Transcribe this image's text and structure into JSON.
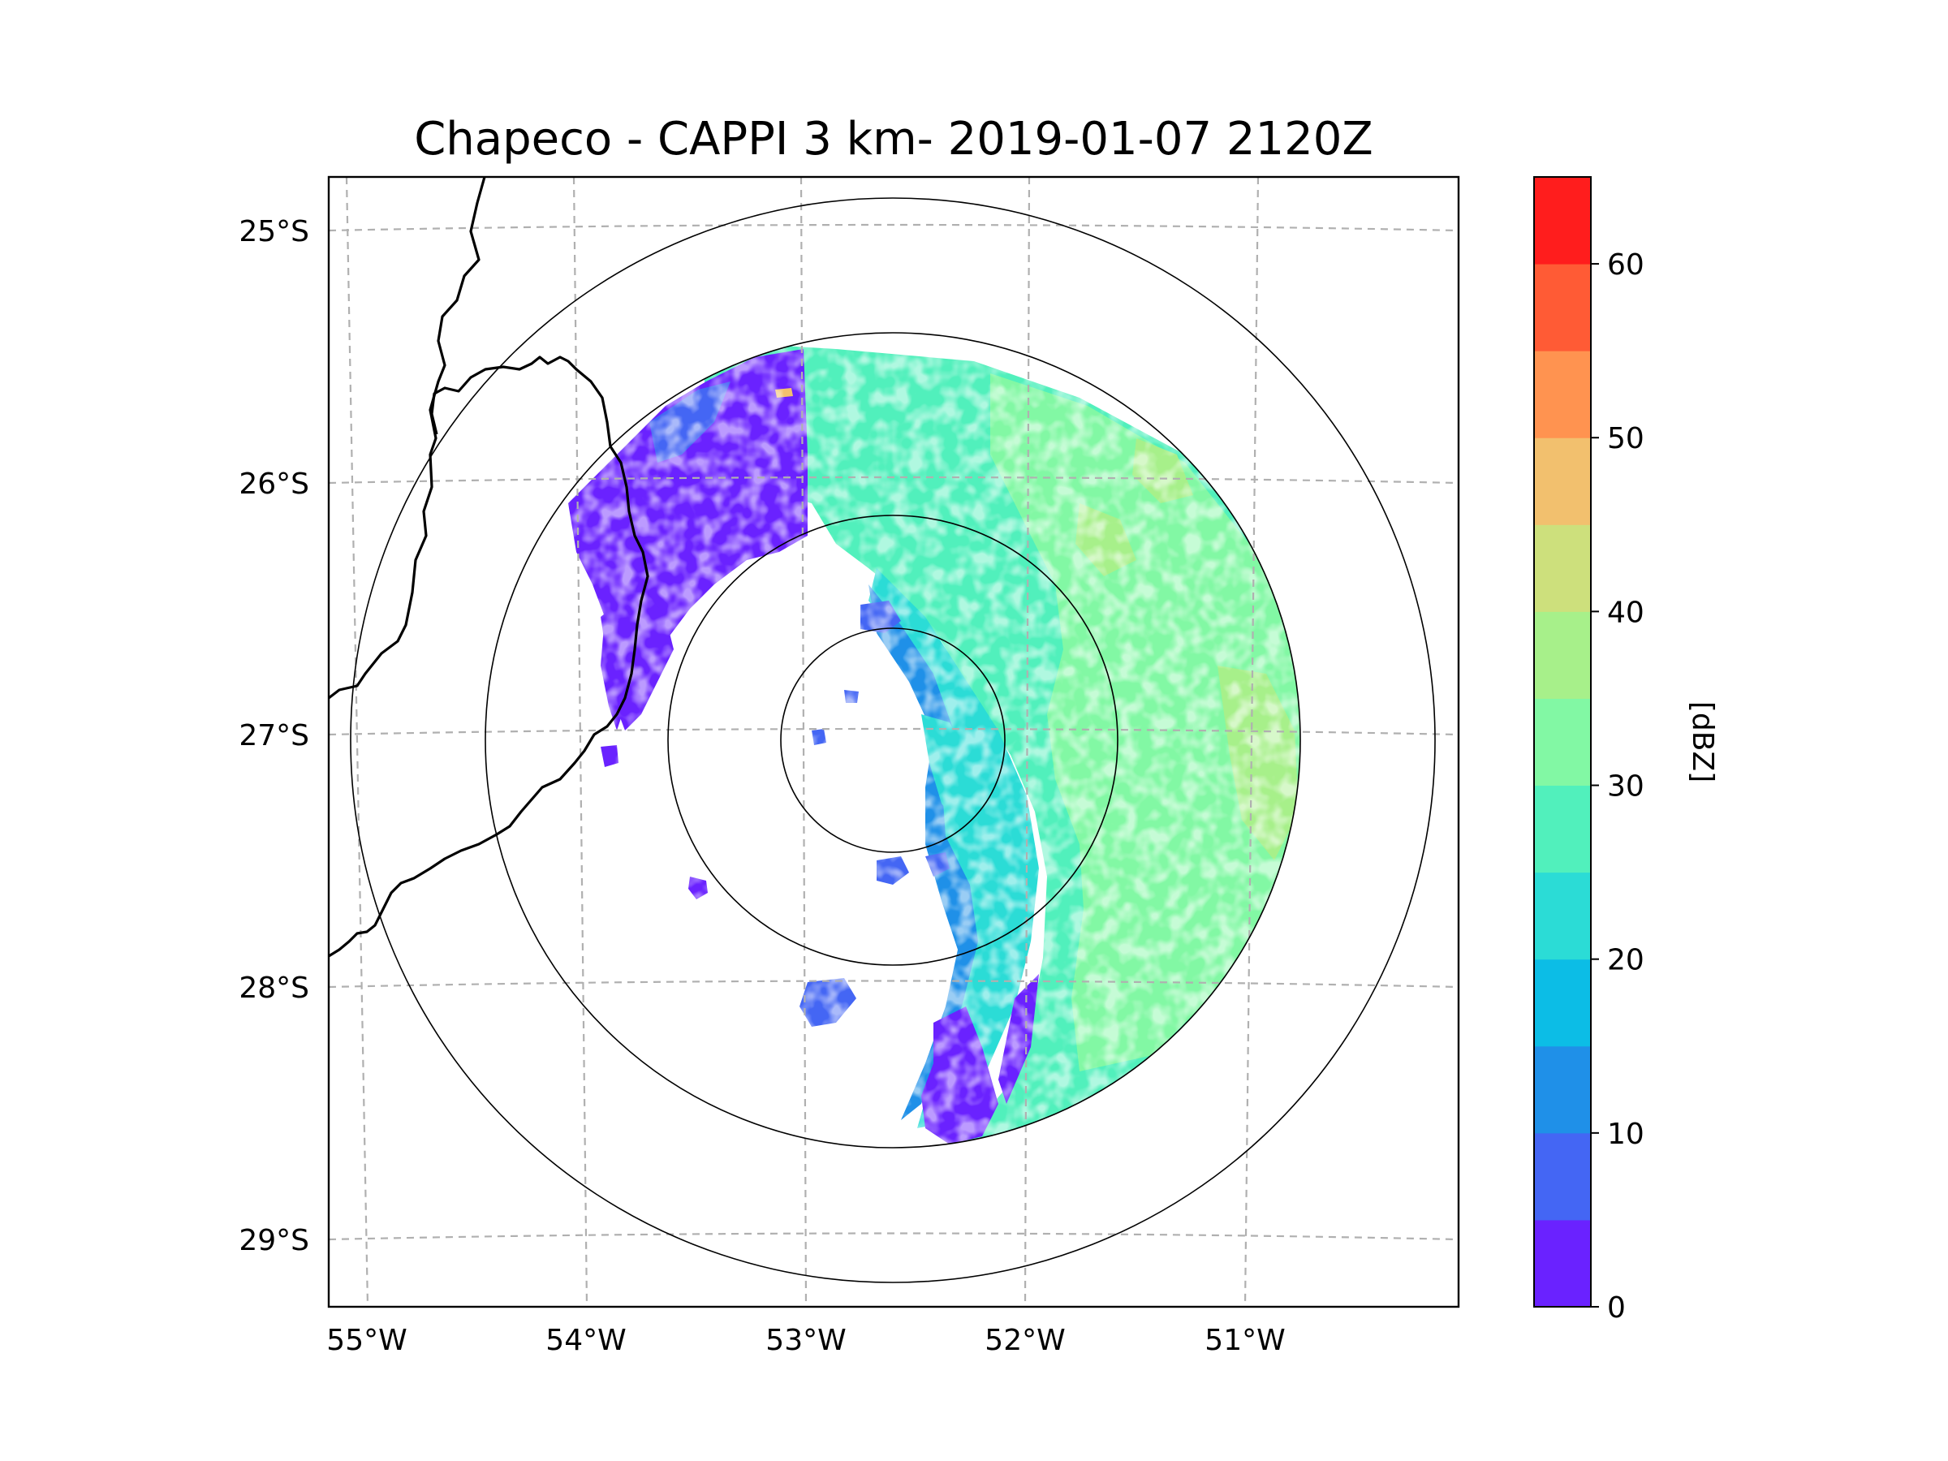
{
  "title": "Chapeco - CAPPI 3 km- 2019-01-07 2120Z",
  "lat_labels": [
    "25°S",
    "26°S",
    "27°S",
    "28°S",
    "29°S"
  ],
  "lon_labels": [
    "55°W",
    "54°W",
    "53°W",
    "52°W",
    "51°W"
  ],
  "colorbar": {
    "label": "[dBZ]",
    "ticks": [
      "0",
      "10",
      "20",
      "30",
      "40",
      "50",
      "60"
    ],
    "levels": [
      0,
      5,
      10,
      15,
      20,
      25,
      30,
      35,
      40,
      45,
      50,
      55,
      60,
      65
    ],
    "colors": [
      "#6a22ff",
      "#4466f4",
      "#1f90e8",
      "#0cbde6",
      "#2bdcd6",
      "#51f0bc",
      "#82f8a4",
      "#a7f08a",
      "#cde07c",
      "#f2c06e",
      "#ff9350",
      "#ff5b35",
      "#ff1d1d"
    ]
  },
  "map": {
    "radar_site": "Chapeco",
    "product": "CAPPI 3 km",
    "range_rings": 4,
    "background": "#ffffff"
  }
}
